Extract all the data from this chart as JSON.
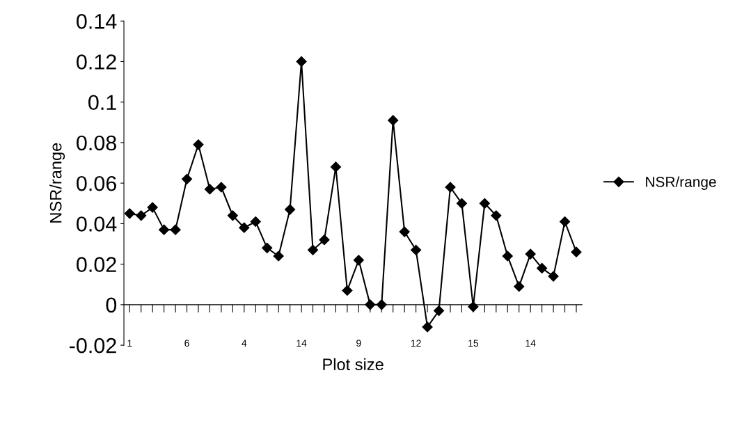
{
  "chart_data": {
    "type": "line",
    "xlabel": "Plot size",
    "ylabel": "NSR/range",
    "categories": [
      "1",
      null,
      null,
      null,
      null,
      "6",
      null,
      null,
      null,
      null,
      "4",
      null,
      null,
      null,
      null,
      "14",
      null,
      null,
      null,
      null,
      "9",
      null,
      null,
      null,
      null,
      "12",
      null,
      null,
      null,
      null,
      "15",
      null,
      null,
      null,
      null,
      "14",
      null,
      null,
      null,
      null
    ],
    "series": [
      {
        "name": "NSR/range",
        "color": "#000000",
        "values": [
          0.045,
          0.044,
          0.048,
          0.037,
          0.037,
          0.062,
          0.079,
          0.057,
          0.058,
          0.044,
          0.038,
          0.041,
          0.028,
          0.024,
          0.047,
          0.12,
          0.027,
          0.032,
          0.068,
          0.007,
          0.022,
          0.0,
          0.0,
          0.091,
          0.036,
          0.027,
          -0.011,
          -0.003,
          0.058,
          0.05,
          -0.001,
          0.05,
          0.044,
          0.024,
          0.009,
          0.025,
          0.018,
          0.014,
          0.041,
          0.026
        ]
      }
    ],
    "ylim": [
      -0.02,
      0.14
    ],
    "yticks": [
      -0.02,
      0,
      0.02,
      0.04,
      0.06,
      0.08,
      0.1,
      0.12,
      0.14
    ],
    "marker": "diamond",
    "line_style": "solid",
    "legend": "right"
  }
}
